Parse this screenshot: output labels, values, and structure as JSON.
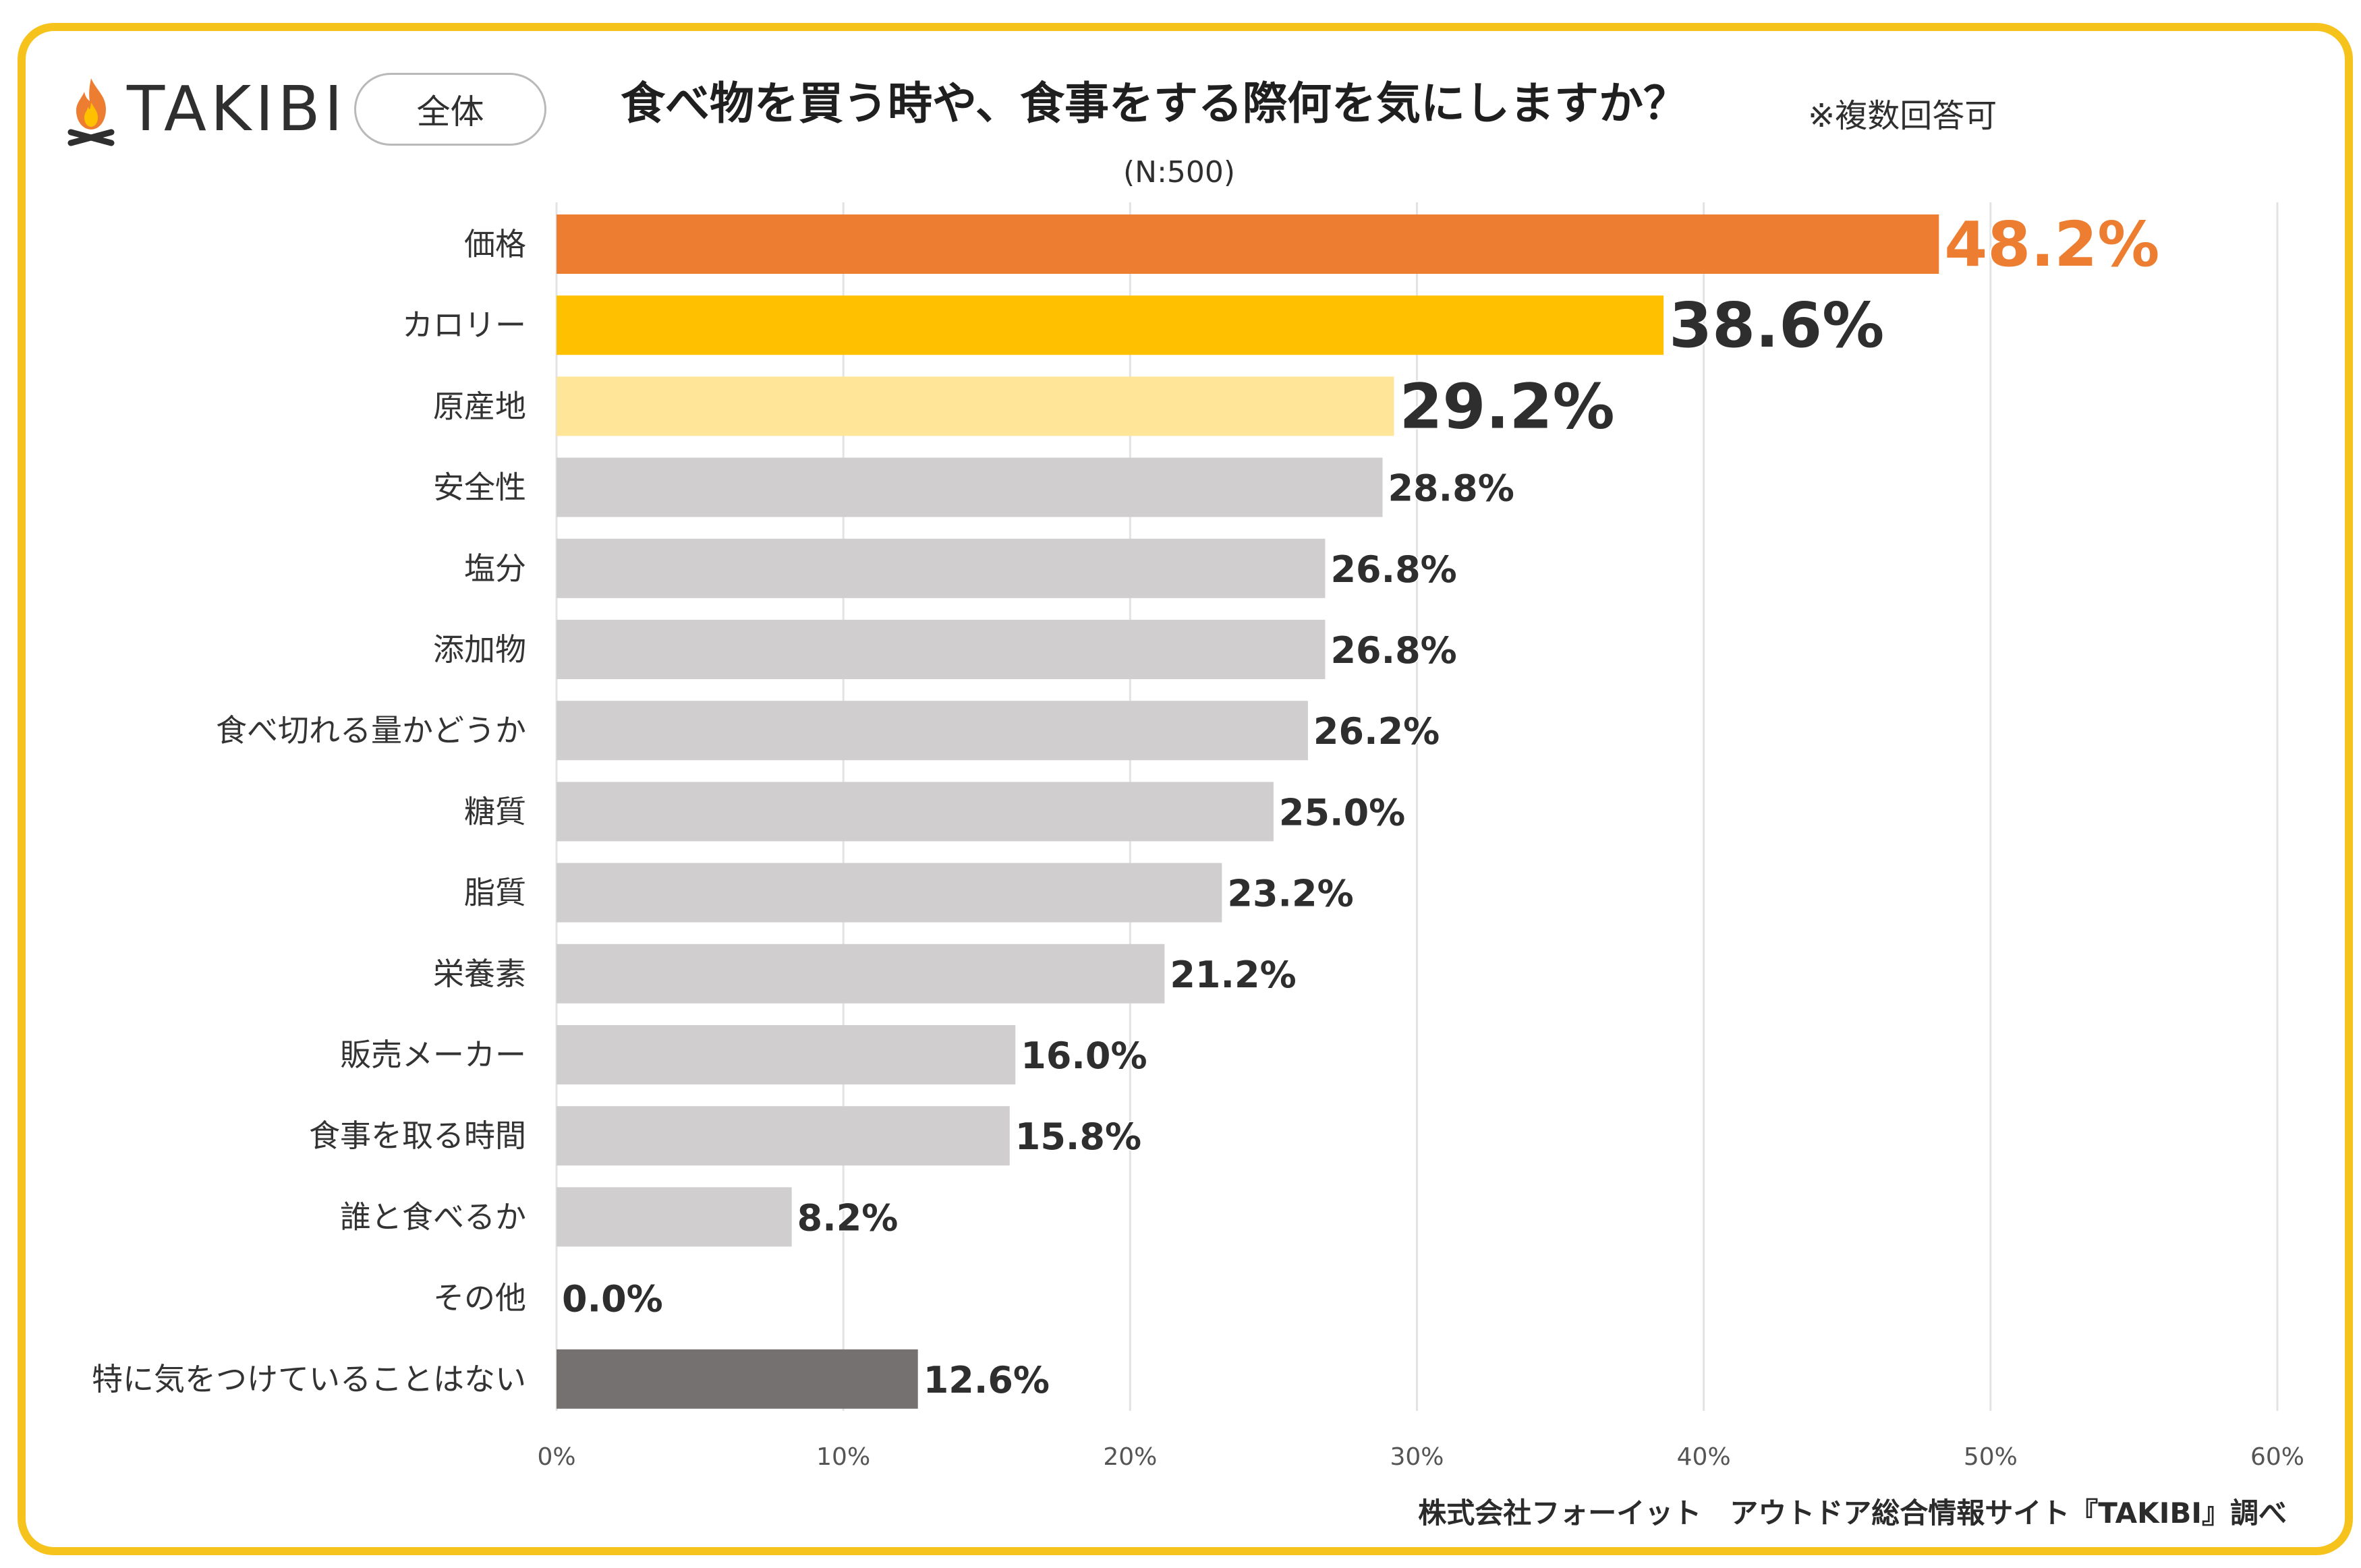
{
  "header": {
    "logo_text": "TAKIBI",
    "badge_label": "全体",
    "title": "食べ物を買う時や、食事をする際何を気にしますか？",
    "note": "※複数回答可",
    "sample": "(N:500)"
  },
  "footer": {
    "credit": "株式会社フォーイット　アウトドア総合情報サイト『TAKIBI』調べ"
  },
  "colors": {
    "frame": "#f6c21c",
    "top1": "#ec7d31",
    "top2": "#ffc000",
    "top3": "#fee598",
    "normal": "#d0cece",
    "none": "#767171",
    "label_top1": "#ec7d31",
    "label_default": "#2e2e2e"
  },
  "chart_data": {
    "type": "bar",
    "orientation": "horizontal",
    "title": "食べ物を買う時や、食事をする際何を気にしますか？",
    "categories": [
      "価格",
      "カロリー",
      "原産地",
      "安全性",
      "塩分",
      "添加物",
      "食べ切れる量かどうか",
      "糖質",
      "脂質",
      "栄養素",
      "販売メーカー",
      "食事を取る時間",
      "誰と食べるか",
      "その他",
      "特に気をつけていることはない"
    ],
    "values": [
      48.2,
      38.6,
      29.2,
      28.8,
      26.8,
      26.8,
      26.2,
      25.0,
      23.2,
      21.2,
      16.0,
      15.8,
      8.2,
      0.0,
      12.6
    ],
    "value_labels": [
      "48.2%",
      "38.6%",
      "29.2%",
      "28.8%",
      "26.8%",
      "26.8%",
      "26.2%",
      "25.0%",
      "23.2%",
      "21.2%",
      "16.0%",
      "15.8%",
      "8.2%",
      "0.0%",
      "12.6%"
    ],
    "xlim": [
      0,
      60
    ],
    "xticks": [
      0,
      10,
      20,
      30,
      40,
      50,
      60
    ],
    "xtick_labels": [
      "0%",
      "10%",
      "20%",
      "30%",
      "40%",
      "50%",
      "60%"
    ],
    "grid": true,
    "xlabel": "",
    "ylabel": ""
  }
}
